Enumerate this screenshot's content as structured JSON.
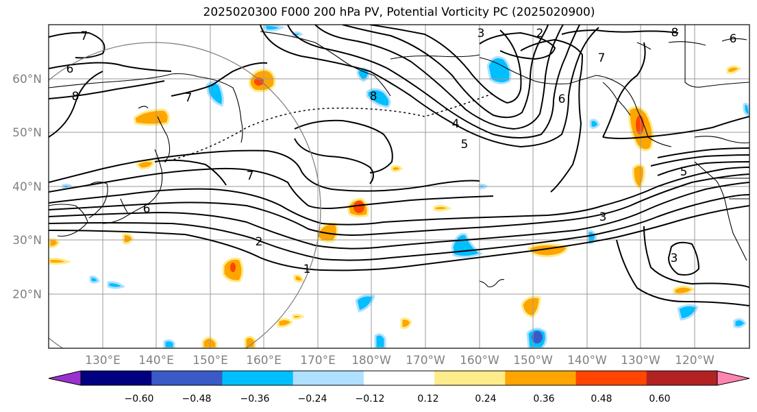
{
  "title": "2025020300 F000 200 hPa PV, Potential Vorticity PC (2025020900)",
  "lat_labels": [
    "60°N",
    "50°N",
    "40°N",
    "30°N",
    "20°N"
  ],
  "lon_labels": [
    "130°E",
    "140°E",
    "150°E",
    "160°E",
    "170°E",
    "180°W",
    "170°W",
    "160°W",
    "150°W",
    "140°W",
    "130°W",
    "120°W"
  ],
  "contour_labels": [
    "7",
    "6",
    "8",
    "7",
    "3",
    "2",
    "8",
    "6",
    "8",
    "4",
    "5",
    "7",
    "6",
    "7",
    "6",
    "2",
    "1",
    "3",
    "5",
    "3"
  ],
  "colorbar": {
    "colors": [
      "#9b30d0",
      "#000080",
      "#3a5bc7",
      "#00bfff",
      "#b0e0ff",
      "#ffffff",
      "#ffec8b",
      "#ffa500",
      "#ff4500",
      "#b22222",
      "#ff85b0"
    ],
    "ticks": [
      "−0.60",
      "−0.48",
      "−0.36",
      "−0.24",
      "−0.12",
      "0.12",
      "0.24",
      "0.36",
      "0.48",
      "0.60"
    ]
  }
}
